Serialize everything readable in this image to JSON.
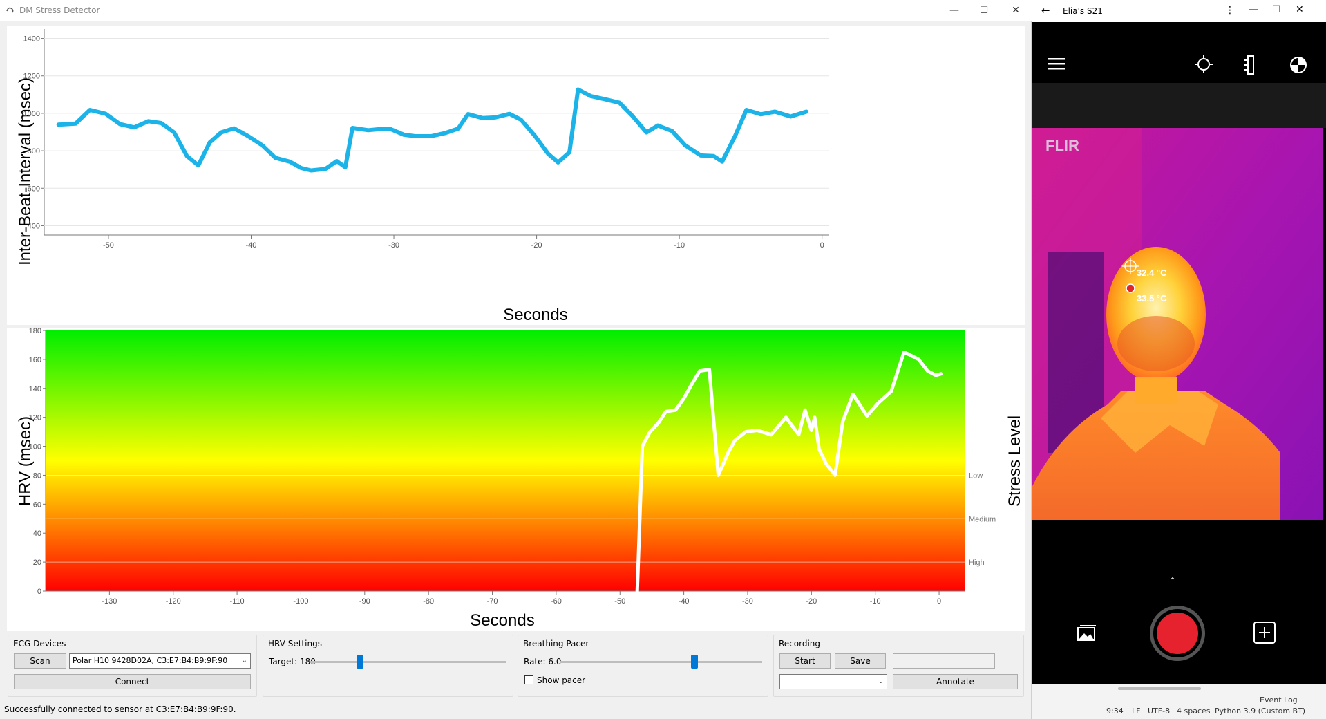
{
  "window": {
    "title": "DM Stress Detector",
    "minimize": "—",
    "maximize": "☐",
    "close": "✕"
  },
  "ibi_chart": {
    "ylabel": "Inter-Beat-Interval (msec)",
    "xlabel": "Seconds",
    "yticks": [
      "1400",
      "1200",
      "1000",
      "800",
      "600",
      "400"
    ],
    "xticks": [
      "-50",
      "-40",
      "-30",
      "-20",
      "-10",
      "0"
    ]
  },
  "hrv_chart": {
    "ylabel": "HRV (msec)",
    "xlabel": "Seconds",
    "y2label": "Stress Level",
    "yticks": [
      "180",
      "160",
      "140",
      "120",
      "100",
      "80",
      "60",
      "40",
      "20",
      "0"
    ],
    "xticks": [
      "-130",
      "-120",
      "-110",
      "-100",
      "-90",
      "-80",
      "-70",
      "-60",
      "-50",
      "-40",
      "-30",
      "-20",
      "-10",
      "0"
    ],
    "levels": [
      "Low",
      "Medium",
      "High"
    ]
  },
  "chart_data": [
    {
      "type": "line",
      "xlabel": "Seconds",
      "ylabel": "Inter-Beat-Interval (msec)",
      "xlim": [
        -54.5,
        0.5
      ],
      "ylim": [
        350,
        1450
      ],
      "series": [
        {
          "color": "#1cb4e8",
          "x": [
            -53.5,
            -52.3,
            -51.3,
            -50.2,
            -49.2,
            -48.2,
            -47.2,
            -46.3,
            -45.4,
            -44.5,
            -43.7,
            -42.9,
            -42.1,
            -41.2,
            -40.2,
            -39.2,
            -38.3,
            -37.3,
            -36.5,
            -35.8,
            -34.8,
            -34.0,
            -33.4,
            -32.9,
            -31.8,
            -30.8,
            -30.3,
            -29.3,
            -28.5,
            -27.4,
            -26.4,
            -25.5,
            -24.8,
            -23.8,
            -22.9,
            -21.9,
            -21.1,
            -20.1,
            -19.2,
            -18.5,
            -17.7,
            -17.1,
            -16.2,
            -15.2,
            -14.2,
            -13.3,
            -12.3,
            -11.5,
            -10.5,
            -9.6,
            -8.5,
            -7.6,
            -7.0,
            -6.1,
            -5.3,
            -4.3,
            -3.3,
            -2.2,
            -1.1
          ],
          "y": [
            940,
            945,
            1018,
            998,
            943,
            925,
            958,
            948,
            898,
            772,
            722,
            845,
            898,
            920,
            878,
            828,
            762,
            742,
            708,
            695,
            703,
            745,
            712,
            922,
            910,
            917,
            918,
            886,
            878,
            878,
            895,
            918,
            996,
            975,
            978,
            997,
            966,
            878,
            785,
            738,
            792,
            1127,
            1092,
            1075,
            1057,
            987,
            898,
            935,
            905,
            830,
            775,
            772,
            742,
            878,
            1018,
            995,
            1009,
            983,
            1009
          ]
        }
      ]
    },
    {
      "type": "line",
      "xlabel": "Seconds",
      "ylabel": "HRV (msec)",
      "xlim": [
        -140,
        4
      ],
      "ylim": [
        0,
        180
      ],
      "series": [
        {
          "color": "#ffffff",
          "x": [
            -47.3,
            -46.5,
            -45.3,
            -44.0,
            -42.8,
            -41.3,
            -40.0,
            -38.6,
            -37.5,
            -36.0,
            -34.6,
            -33.0,
            -32.0,
            -30.3,
            -28.5,
            -26.3,
            -24.0,
            -22.0,
            -21.0,
            -20.0,
            -19.5,
            -18.8,
            -17.7,
            -16.3,
            -15.1,
            -13.5,
            -11.3,
            -9.5,
            -7.5,
            -5.5,
            -5.0,
            -3.2,
            -1.8,
            -0.5,
            0.3
          ],
          "y": [
            0,
            100,
            110,
            116,
            124,
            125,
            133,
            144,
            152,
            153,
            80,
            96,
            104,
            110,
            111,
            108,
            120,
            108,
            125,
            111,
            120,
            98,
            88,
            80,
            117,
            136,
            121,
            130,
            138,
            165,
            164,
            160,
            152,
            149,
            150
          ]
        }
      ]
    }
  ],
  "controls": {
    "ecg": {
      "title": "ECG Devices",
      "scan": "Scan",
      "device": "Polar H10 9428D02A, C3:E7:B4:B9:9F:90",
      "connect": "Connect"
    },
    "hrv": {
      "title": "HRV Settings",
      "target_label": "Target: 180",
      "target_value": 180
    },
    "pacer": {
      "title": "Breathing Pacer",
      "rate_label": "Rate: 6.0",
      "rate_value": 6.0,
      "show_pacer": "Show pacer"
    },
    "recording": {
      "title": "Recording",
      "start": "Start",
      "save": "Save",
      "annotate": "Annotate"
    }
  },
  "status": "Successfully connected to sensor at C3:E7:B4:B9:9F:90.",
  "phone": {
    "title": "Elia's S21",
    "brand": "FLIR",
    "temp1": "32.4 °C",
    "temp2": "33.5 °C"
  },
  "ide_status": {
    "event_log": "Event Log",
    "items": [
      "9:34",
      "LF",
      "UTF-8",
      "4 spaces",
      "Python 3.9 (Custom BT)"
    ]
  }
}
